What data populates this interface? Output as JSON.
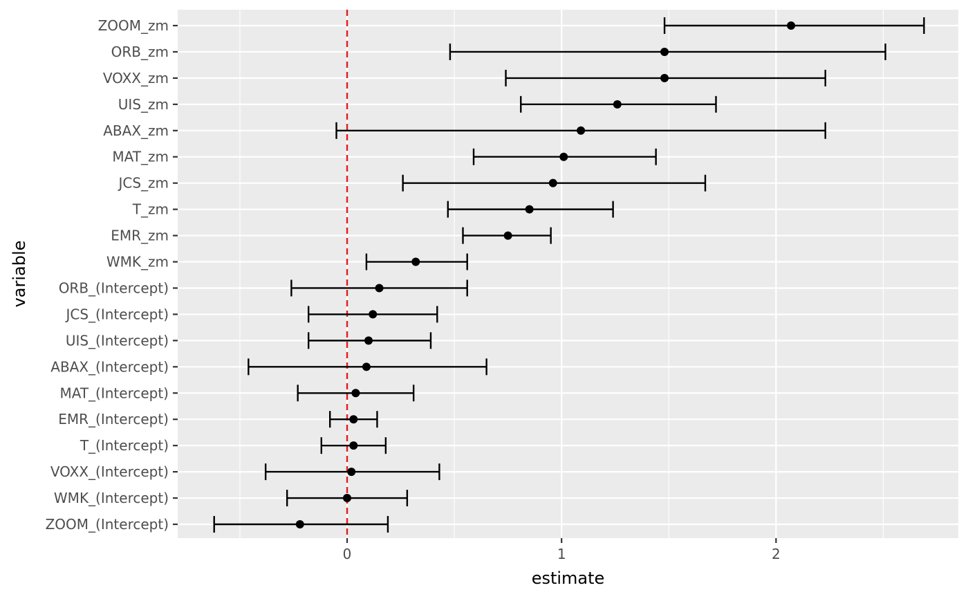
{
  "chart_data": {
    "type": "errorbar",
    "xlabel": "estimate",
    "ylabel": "variable",
    "xlim": [
      -0.79,
      2.85
    ],
    "x_ticks": [
      0,
      1,
      2
    ],
    "x_tick_labels": [
      "0",
      "1",
      "2"
    ],
    "grid": true,
    "reference_line": {
      "x": 0,
      "color": "#e41a1c",
      "style": "dashed"
    },
    "point_color": "#000000",
    "panel_background": "#ebebeb",
    "categories": [
      "ZOOM_zm",
      "ORB_zm",
      "VOXX_zm",
      "UIS_zm",
      "ABAX_zm",
      "MAT_zm",
      "JCS_zm",
      "T_zm",
      "EMR_zm",
      "WMK_zm",
      "ORB_(Intercept)",
      "JCS_(Intercept)",
      "UIS_(Intercept)",
      "ABAX_(Intercept)",
      "MAT_(Intercept)",
      "EMR_(Intercept)",
      "T_(Intercept)",
      "VOXX_(Intercept)",
      "WMK_(Intercept)",
      "ZOOM_(Intercept)"
    ],
    "estimates": [
      2.07,
      1.48,
      1.48,
      1.26,
      1.09,
      1.01,
      0.96,
      0.85,
      0.75,
      0.32,
      0.15,
      0.12,
      0.1,
      0.09,
      0.04,
      0.03,
      0.03,
      0.02,
      0.0,
      -0.22
    ],
    "lower": [
      1.48,
      0.48,
      0.74,
      0.81,
      -0.05,
      0.59,
      0.26,
      0.47,
      0.54,
      0.09,
      -0.26,
      -0.18,
      -0.18,
      -0.46,
      -0.23,
      -0.08,
      -0.12,
      -0.38,
      -0.28,
      -0.62
    ],
    "upper": [
      2.69,
      2.51,
      2.23,
      1.72,
      2.23,
      1.44,
      1.67,
      1.24,
      0.95,
      0.56,
      0.56,
      0.42,
      0.39,
      0.65,
      0.31,
      0.14,
      0.18,
      0.43,
      0.28,
      0.19
    ]
  }
}
